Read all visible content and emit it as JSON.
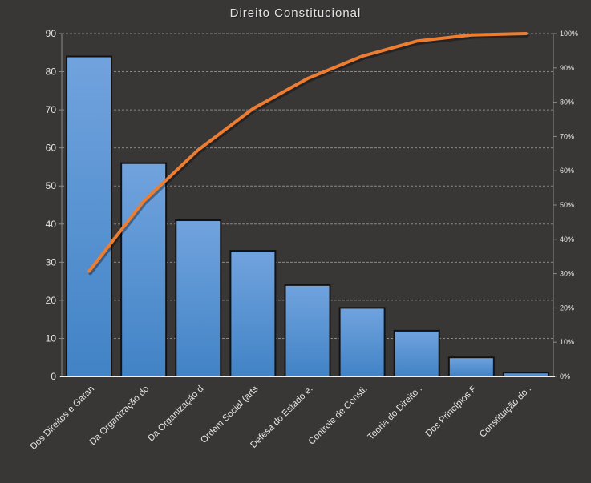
{
  "window": {
    "background": "#393636"
  },
  "chart_data": {
    "type": "bar",
    "subtype": "pareto",
    "title": "Direito Constitucional",
    "categories": [
      "Dos Direitos e Garan",
      "Da Organização do",
      "Da Organização d",
      "Ordem Social (arts",
      "Defesa do Estado e.",
      "Controle de Consti.",
      "Teoria do Direito .",
      "Dos Princípios F",
      "Constituição do ."
    ],
    "series": [
      {
        "name": "frequency-bars",
        "type": "bar",
        "values": [
          84,
          56,
          41,
          33,
          24,
          18,
          12,
          5,
          1
        ]
      },
      {
        "name": "cumulative-percent-line",
        "type": "line",
        "values": [
          30.7,
          51.1,
          66.1,
          78.1,
          86.9,
          93.4,
          97.8,
          99.6,
          100.0
        ]
      }
    ],
    "left_axis": {
      "min": 0,
      "max": 90,
      "step": 10,
      "ticks": [
        "0",
        "10",
        "20",
        "30",
        "40",
        "50",
        "60",
        "70",
        "80",
        "90"
      ]
    },
    "right_axis": {
      "min": 0,
      "max": 100,
      "step": 10,
      "ticks": [
        "0%",
        "10%",
        "20%",
        "30%",
        "40%",
        "50%",
        "60%",
        "70%",
        "80%",
        "90%",
        "100%"
      ]
    },
    "grid": {
      "horizontal": true,
      "style": "dashed"
    },
    "legend": "none",
    "colors": {
      "background": "#393636",
      "bar_gradient_top": "#71A3DE",
      "bar_gradient_bottom": "#4183C6",
      "bar_border": "#121212",
      "line": "#ED7D31",
      "line_shadow": "rgba(0,0,0,0.35)",
      "gridline": "#A7A3A3",
      "axis_side": "#8E8A8A",
      "axis_bottom": "#F2F0F0",
      "text": "#E6E4E4"
    }
  }
}
